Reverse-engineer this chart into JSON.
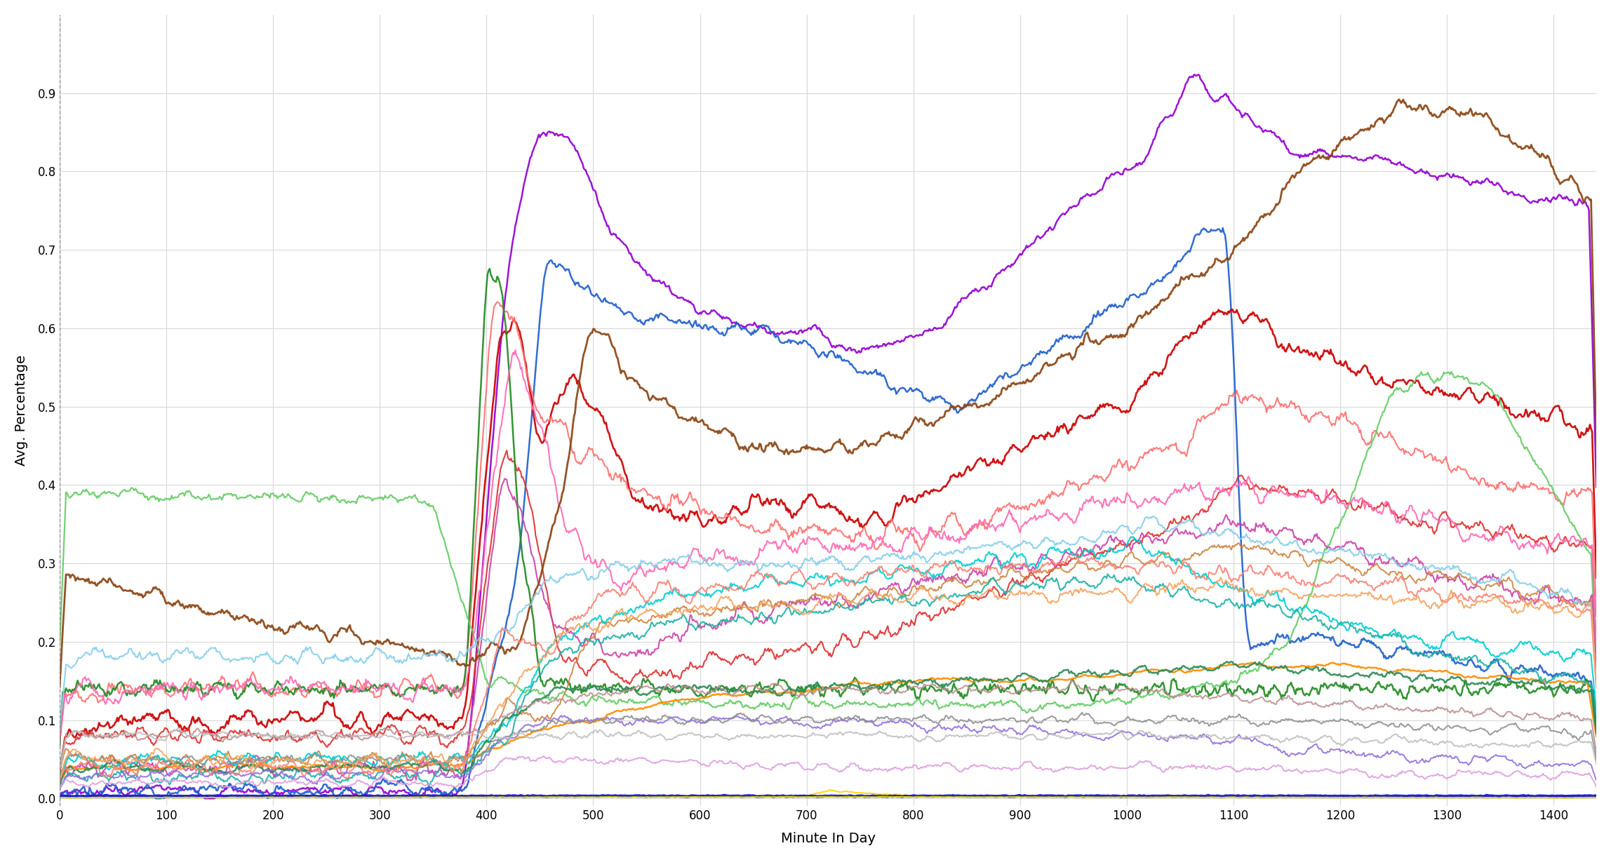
{
  "title": "",
  "xlabel": "Minute In Day",
  "ylabel": "Avg. Percentage",
  "xlim": [
    0,
    1440
  ],
  "ylim": [
    -0.01,
    1.0
  ],
  "xticks": [
    0,
    100,
    200,
    300,
    400,
    500,
    600,
    700,
    800,
    900,
    1000,
    1100,
    1200,
    1300,
    1400
  ],
  "yticks": [
    0.0,
    0.1,
    0.2,
    0.3,
    0.4,
    0.5,
    0.6,
    0.7,
    0.8,
    0.9
  ],
  "background_color": "#ffffff",
  "grid_color": "#d8d8d8",
  "figsize": [
    22.96,
    12.26
  ],
  "dpi": 100
}
